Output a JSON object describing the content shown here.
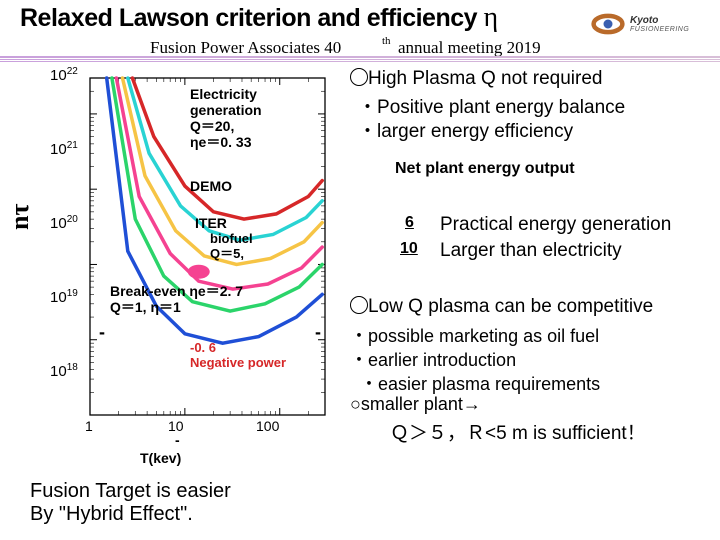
{
  "title": {
    "main": "Relaxed Lawson criterion and efficiency",
    "symbol": "η",
    "fontsize": 25,
    "font": "Arial Black"
  },
  "subtitle": {
    "left": "Fusion Power Associates 40",
    "th": "th",
    "rest": "annual meeting 2019",
    "font": "Times New Roman",
    "fontsize": 17
  },
  "logo": {
    "brand_top": "Kyoto",
    "brand_bottom": "FUSIONEERING",
    "ring_color": "#b96a2a",
    "core_color": "#3a5fb0"
  },
  "chart": {
    "type": "line",
    "xlabel": "T(kev)",
    "ylabel": "nτ",
    "xscale": "log",
    "yscale": "log",
    "xlim": [
      1,
      300
    ],
    "ylim": [
      1e+18,
      3e+22
    ],
    "xticks": [
      1,
      10,
      100
    ],
    "xtick_labels": [
      "1",
      "10",
      "100"
    ],
    "yticks": [
      1e+18,
      1e+19,
      1e+20,
      1e+21,
      1e+22
    ],
    "ytick_labels": [
      "10^18",
      "10^19",
      "10^20",
      "10^21",
      "10^22"
    ],
    "background_color": "#ffffff",
    "axis_color": "#000000",
    "line_width": 3.5,
    "curves": [
      {
        "name": "breakeven",
        "color": "#1f4fd6",
        "label": "Break-even Q=1, η=1",
        "points": [
          [
            1.5,
            3e+22
          ],
          [
            2.5,
            1.5e+20
          ],
          [
            5,
            2.8e+19
          ],
          [
            10,
            1.2e+19
          ],
          [
            25,
            9e+18
          ],
          [
            60,
            1.1e+19
          ],
          [
            150,
            2e+19
          ],
          [
            280,
            4e+19
          ]
        ]
      },
      {
        "name": "biofuel",
        "color": "#2bd46a",
        "label": "biofuel Q=5, ηe=2.7",
        "points": [
          [
            1.7,
            3e+22
          ],
          [
            3,
            4e+20
          ],
          [
            6,
            7e+19
          ],
          [
            12,
            3.2e+19
          ],
          [
            30,
            2.4e+19
          ],
          [
            70,
            3e+19
          ],
          [
            160,
            5e+19
          ],
          [
            280,
            1e+20
          ]
        ]
      },
      {
        "name": "iter",
        "color": "#f54291",
        "label": "ITER",
        "points": [
          [
            1.9,
            3e+22
          ],
          [
            3.3,
            8e+20
          ],
          [
            7,
            1.4e+20
          ],
          [
            14,
            6e+19
          ],
          [
            32,
            4.7e+19
          ],
          [
            75,
            5.5e+19
          ],
          [
            170,
            9e+19
          ],
          [
            280,
            1.7e+20
          ]
        ]
      },
      {
        "name": "demo",
        "color": "#f6c445",
        "label": "DEMO",
        "points": [
          [
            2.2,
            3e+22
          ],
          [
            3.8,
            1.5e+21
          ],
          [
            8,
            2.8e+20
          ],
          [
            16,
            1.3e+20
          ],
          [
            35,
            1e+20
          ],
          [
            80,
            1.2e+20
          ],
          [
            180,
            2e+20
          ],
          [
            280,
            3.6e+20
          ]
        ]
      },
      {
        "name": "elecgen",
        "color": "#29d3d3",
        "label": "Electricity generation Q=20, ηe=0.33",
        "points": [
          [
            2.5,
            3e+22
          ],
          [
            4.2,
            3e+21
          ],
          [
            9,
            6e+20
          ],
          [
            18,
            2.8e+20
          ],
          [
            38,
            2.1e+20
          ],
          [
            85,
            2.5e+20
          ],
          [
            190,
            4.2e+20
          ],
          [
            280,
            7e+20
          ]
        ]
      },
      {
        "name": "highQ",
        "color": "#d62728",
        "label": "High Plasma Q not required",
        "points": [
          [
            2.8,
            3e+22
          ],
          [
            4.7,
            5e+21
          ],
          [
            10,
            1.1e+21
          ],
          [
            20,
            5e+20
          ],
          [
            42,
            4e+20
          ],
          [
            92,
            4.7e+20
          ],
          [
            200,
            8e+20
          ],
          [
            280,
            1.3e+21
          ]
        ]
      }
    ],
    "iter_marker": {
      "T": 14,
      "nt": 8e+19,
      "color": "#f54291"
    },
    "annotations": {
      "elecgen": "Electricity\ngeneration\nQ＝20,\nηe＝0. 33",
      "demo": "DEMO",
      "iter": "ITER",
      "biofuel": "biofuel\nQ＝5,",
      "breakeven": "Break-even ηe＝2. 7\nQ＝1, η＝1",
      "neg1": "-0. 6",
      "neg2": "Negative power"
    }
  },
  "right": {
    "line1": "High Plasma Q not required",
    "line2": "Positive plant energy balance",
    "line3": "larger energy efficiency",
    "net": "Net plant energy output",
    "six": "6",
    "ten": "10",
    "r6": "Practical energy generation",
    "r10": "Larger than electricity",
    "lowq": "Low Q plasma can be competitive",
    "b1": "possible marketing as oil fuel",
    "b2": "earlier introduction",
    "b3": "easier plasma requirements",
    "smaller": "smaller plant→",
    "qr": "Ｑ＞５，Ｒ<5 m is sufficient！"
  },
  "bottom": {
    "l1": "Fusion Target is easier",
    "l2": "By \"Hybrid Effect\"."
  },
  "colors": {
    "text": "#000000",
    "red": "#d62728",
    "rule": "#c9a0dc"
  }
}
